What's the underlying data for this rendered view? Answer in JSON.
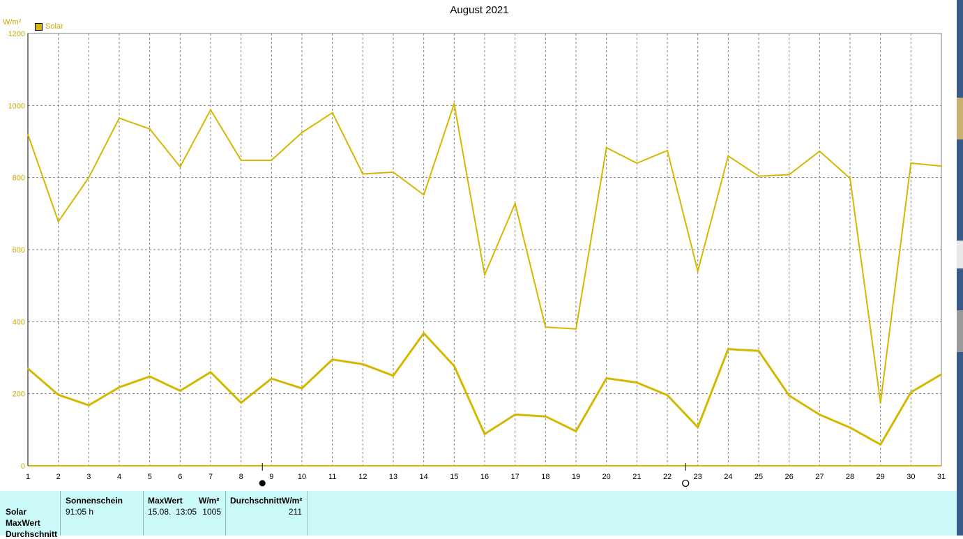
{
  "chart_data": {
    "type": "line",
    "title": "August 2021",
    "ylabel": "W/m²",
    "ylim": [
      0,
      1200
    ],
    "xlim": [
      1,
      31
    ],
    "yticks": [
      0,
      200,
      400,
      600,
      800,
      1000,
      1200
    ],
    "x": [
      1,
      2,
      3,
      4,
      5,
      6,
      7,
      8,
      9,
      10,
      11,
      12,
      13,
      14,
      15,
      16,
      17,
      18,
      19,
      20,
      21,
      22,
      23,
      24,
      25,
      26,
      27,
      28,
      29,
      30,
      31
    ],
    "grid": true,
    "legend_position": "top-left",
    "series": [
      {
        "name": "Solar",
        "role": "max",
        "values": [
          920,
          678,
          800,
          965,
          935,
          830,
          988,
          848,
          848,
          925,
          980,
          810,
          815,
          752,
          1005,
          530,
          728,
          385,
          380,
          883,
          840,
          875,
          540,
          860,
          804,
          808,
          873,
          798,
          175,
          840,
          832
        ]
      },
      {
        "name": "Solar",
        "role": "mean",
        "values": [
          270,
          197,
          168,
          218,
          248,
          208,
          260,
          175,
          242,
          215,
          295,
          282,
          250,
          368,
          277,
          88,
          142,
          137,
          96,
          243,
          231,
          196,
          107,
          324,
          319,
          195,
          142,
          106,
          59,
          204,
          254
        ]
      }
    ],
    "moon_phases": [
      {
        "day": 8.7,
        "symbol": "new"
      },
      {
        "day": 22.6,
        "symbol": "full"
      }
    ]
  },
  "colors": {
    "line": "#d4b800",
    "grid": "#808080",
    "axis": "#000000",
    "label": "#c9a800",
    "panel": "#ccfaf8"
  },
  "legend": {
    "label": "Solar"
  },
  "unit": "W/m²",
  "info": {
    "rows": [
      "Solar",
      "MaxWert",
      "Durchschnitt"
    ],
    "sunshine": {
      "header": "Sonnenschein",
      "value": "91:05 h"
    },
    "max": {
      "header": "MaxWert",
      "unit": "W/m²",
      "time": "15.08.  13:05",
      "value": "1005"
    },
    "avg": {
      "header": "DurchschnittW/m²",
      "value": "211"
    }
  }
}
